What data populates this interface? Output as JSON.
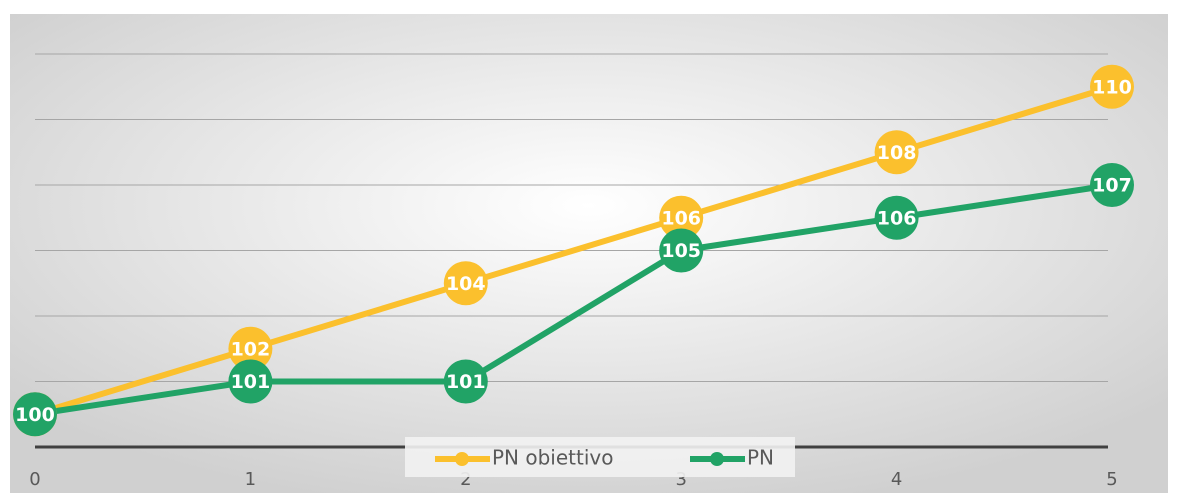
{
  "chart_data": {
    "type": "line",
    "x": [
      0,
      1,
      2,
      3,
      4,
      5
    ],
    "xlim": [
      0,
      5
    ],
    "xticks": [
      0,
      1,
      2,
      3,
      4,
      5
    ],
    "ylim": [
      99,
      111
    ],
    "yticks": [
      99,
      101,
      103,
      105,
      107,
      109,
      111
    ],
    "grid": true,
    "legend": "bottom",
    "series": [
      {
        "name": "PN obiettivo",
        "color": "#fbc02d",
        "values": [
          100,
          102,
          104,
          106,
          108,
          110
        ]
      },
      {
        "name": "PN",
        "color": "#21a366",
        "values": [
          100,
          101,
          101,
          105,
          106,
          107
        ]
      }
    ]
  }
}
